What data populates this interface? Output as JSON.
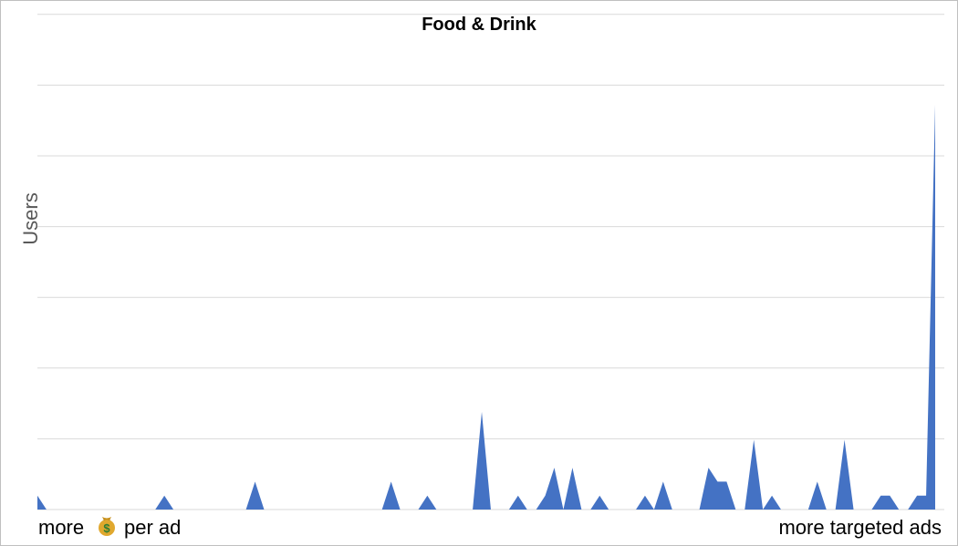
{
  "chart_data": {
    "type": "area",
    "title": "Food & Drink",
    "ylabel": "Users",
    "xlabel_left": "more",
    "xlabel_left_icon": "money-bag-icon",
    "xlabel_left_suffix": "per ad",
    "xlabel_right": "more targeted ads",
    "ylim": [
      0,
      29
    ],
    "grid": true,
    "gridline_values": [
      0,
      5,
      10,
      15,
      20,
      25,
      30,
      35
    ],
    "x": [
      0,
      1,
      2,
      3,
      4,
      5,
      6,
      7,
      8,
      9,
      10,
      11,
      12,
      13,
      14,
      15,
      16,
      17,
      18,
      19,
      20,
      21,
      22,
      23,
      24,
      25,
      26,
      27,
      28,
      29,
      30,
      31,
      32,
      33,
      34,
      35,
      36,
      37,
      38,
      39,
      40,
      41,
      42,
      43,
      44,
      45,
      46,
      47,
      48,
      49,
      50,
      51,
      52,
      53,
      54,
      55,
      56,
      57,
      58,
      59,
      60,
      61,
      62,
      63,
      64,
      65,
      66,
      67,
      68,
      69,
      70,
      71,
      72,
      73,
      74,
      75,
      76,
      77,
      78,
      79,
      80,
      81,
      82,
      83,
      84,
      85,
      86,
      87,
      88,
      89,
      90,
      91,
      92,
      93,
      94,
      95,
      96,
      97,
      98,
      99
    ],
    "series": [
      {
        "color": "#4472c4",
        "values": [
          1,
          0,
          0,
          0,
          0,
          0,
          0,
          0,
          0,
          0,
          0,
          0,
          0,
          0,
          1,
          0,
          0,
          0,
          0,
          0,
          0,
          0,
          0,
          0,
          2,
          0,
          0,
          0,
          0,
          0,
          0,
          0,
          0,
          0,
          0,
          0,
          0,
          0,
          0,
          2,
          0,
          0,
          0,
          1,
          0,
          0,
          0,
          0,
          0,
          7,
          0,
          0,
          0,
          1,
          0,
          0,
          1,
          3,
          0,
          3,
          0,
          0,
          1,
          0,
          0,
          0,
          0,
          1,
          0,
          2,
          0,
          0,
          0,
          0,
          3,
          2,
          2,
          0,
          0,
          5,
          0,
          1,
          0,
          0,
          0,
          0,
          2,
          0,
          0,
          5,
          0,
          0,
          0,
          1,
          1,
          0,
          0,
          1,
          1,
          29
        ]
      }
    ]
  }
}
